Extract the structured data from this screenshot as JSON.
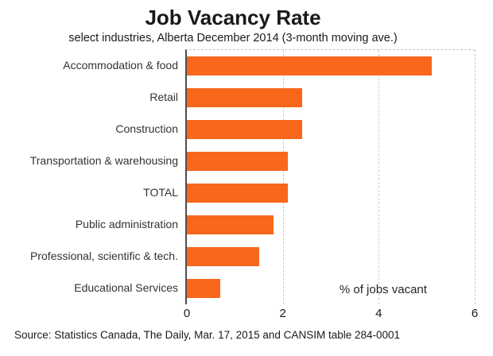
{
  "source": "Source: Statistics Canada, The Daily, Mar. 17, 2015 and CANSIM table 284-0001",
  "colors": {
    "bar": "#F8671C",
    "axis_line": "#4D4D4D",
    "gridline": "#C9C9C9",
    "title_text": "#1A1A1A",
    "label_text": "#333333"
  },
  "chart_data": {
    "type": "bar",
    "orientation": "horizontal",
    "title": "Job Vacancy Rate",
    "subtitle": "select industries, Alberta December 2014 (3-month moving ave.)",
    "xlabel": "% of jobs vacant",
    "categories": [
      "Accommodation & food",
      "Retail",
      "Construction",
      "Transportation & warehousing",
      "TOTAL",
      "Public administration",
      "Professional, scientific & tech.",
      "Educational Services"
    ],
    "values": [
      5.1,
      2.4,
      2.4,
      2.1,
      2.1,
      1.8,
      1.5,
      0.7
    ],
    "xlim": [
      0,
      6
    ],
    "xticks": [
      0,
      2,
      4,
      6
    ],
    "grid": "vertical-dashed",
    "legend": "none"
  }
}
